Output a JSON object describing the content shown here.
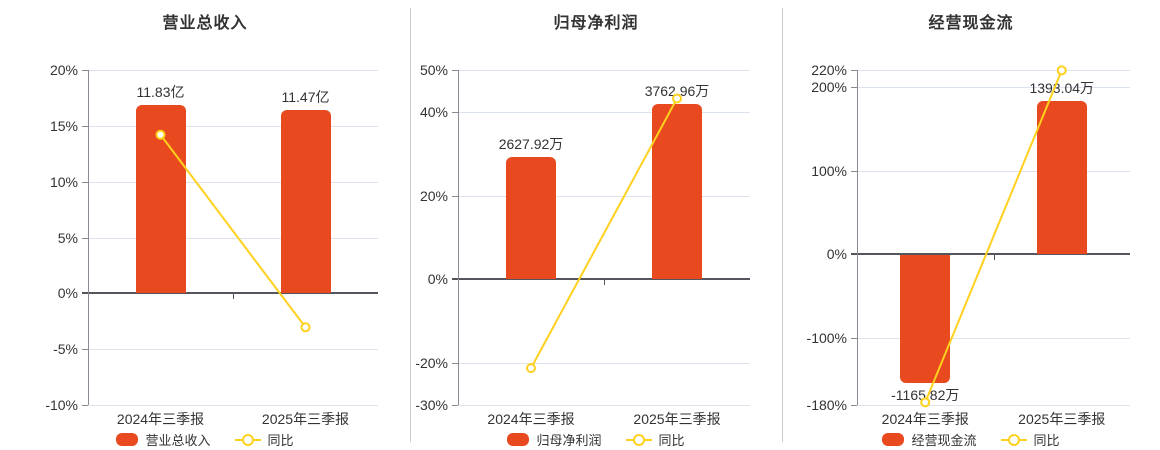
{
  "colors": {
    "bar": "#e8491e",
    "line": "#ffd11e",
    "grid": "#dce3ec",
    "zero_line": "#55555e",
    "axis": "#8a8a94",
    "text": "#333333",
    "separator": "#cccccc"
  },
  "chart_data": [
    {
      "type": "bar+line",
      "title": "营业总收入",
      "categories": [
        "2024年三季报",
        "2025年三季报"
      ],
      "bars": {
        "name": "营业总收入",
        "unit": "亿",
        "values": [
          11.83,
          11.47
        ],
        "labels": [
          "11.83亿",
          "11.47亿"
        ]
      },
      "line": {
        "name": "同比",
        "values_pct": [
          14.2,
          -3.04
        ]
      },
      "yaxis": {
        "min": -10,
        "max": 20,
        "unit": "%",
        "ticks": [
          "20%",
          "15%",
          "10%",
          "5%",
          "0%",
          "-5%",
          "-10%"
        ],
        "tick_values": [
          20,
          15,
          10,
          5,
          0,
          -5,
          -10
        ]
      },
      "bar_axis_max": 14,
      "legend_position": "bottom",
      "grid": true
    },
    {
      "type": "bar+line",
      "title": "归母净利润",
      "categories": [
        "2024年三季报",
        "2025年三季报"
      ],
      "bars": {
        "name": "归母净利润",
        "unit": "万",
        "values": [
          2627.92,
          3762.96
        ],
        "labels": [
          "2627.92万",
          "3762.96万"
        ]
      },
      "line": {
        "name": "同比",
        "values_pct": [
          -21.2,
          43.19
        ]
      },
      "yaxis": {
        "min": -30,
        "max": 50,
        "unit": "%",
        "ticks": [
          "50%",
          "40%",
          "20%",
          "0%",
          "-20%",
          "-30%"
        ],
        "tick_values": [
          50,
          40,
          20,
          0,
          -20,
          -30
        ]
      },
      "bar_axis_max": 4500,
      "legend_position": "bottom",
      "grid": true
    },
    {
      "type": "bar+line",
      "title": "经营现金流",
      "categories": [
        "2024年三季报",
        "2025年三季报"
      ],
      "bars": {
        "name": "经营现金流",
        "unit": "万",
        "values": [
          -1165.82,
          1393.04
        ],
        "labels": [
          "-1165.82万",
          "1393.04万"
        ]
      },
      "line": {
        "name": "同比",
        "values_pct": [
          -176.8,
          219.5
        ]
      },
      "yaxis": {
        "min": -180,
        "max": 220,
        "unit": "%",
        "ticks": [
          "220%",
          "200%",
          "100%",
          "0%",
          "-100%",
          "-180%"
        ],
        "tick_values": [
          220,
          200,
          100,
          0,
          -100,
          -180
        ]
      },
      "bar_axis_max": 1680,
      "legend_position": "bottom",
      "grid": true
    }
  ]
}
